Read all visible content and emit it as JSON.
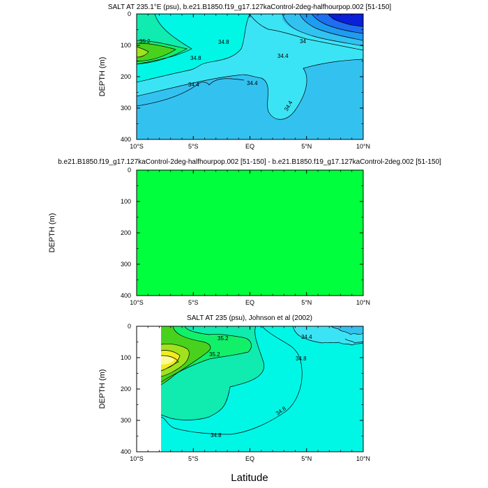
{
  "figure": {
    "xlabel": "Latitude",
    "colors": {
      "c33_0": "#0a1fd8",
      "c33_4": "#1e6ef0",
      "c33_8": "#1e9cf0",
      "c34_0": "#33c2f0",
      "c34_4": "#3be4f5",
      "c34_8": "#00f7e6",
      "c35_0": "#10ebb0",
      "c35_2": "#12f06a",
      "c35_4": "#48d21e",
      "c35_6": "#a0e21e",
      "c35_8": "#f0ec1e",
      "c36_0": "#fbfb96",
      "diff_fill": "#00ff3c"
    }
  },
  "chart_data": [
    {
      "id": "panel1",
      "type": "contour",
      "title": "SALT AT 235.1°E (psu), b.e21.B1850.f19_g17.127kaControl-2deg-halfhourpop.002 [51-150]",
      "ylabel": "DEPTH (m)",
      "xlim": [
        -10,
        10
      ],
      "ylim": [
        400,
        0
      ],
      "xticks": [
        "10°S",
        "5°S",
        "EQ",
        "5°N",
        "10°N"
      ],
      "xtick_values": [
        -10,
        -5,
        0,
        5,
        10
      ],
      "yticks": [
        "0",
        "100",
        "200",
        "300",
        "400"
      ],
      "ytick_values": [
        0,
        100,
        200,
        300,
        400
      ],
      "contour_labels": [
        "35.2",
        "34.8",
        "34.8",
        "34.4",
        "34",
        "34.4",
        "34.4",
        "34.4"
      ]
    },
    {
      "id": "panel2",
      "type": "contour",
      "title": "b.e21.B1850.f19_g17.127kaControl-2deg-halfhourpop.002 [51-150] - b.e21.B1850.f19_g17.127kaControl-2deg.002 [51-150]",
      "ylabel": "DEPTH (m)",
      "xlim": [
        -10,
        10
      ],
      "ylim": [
        400,
        0
      ],
      "xticks": [
        "10°S",
        "5°S",
        "EQ",
        "5°N",
        "10°N"
      ],
      "xtick_values": [
        -10,
        -5,
        0,
        5,
        10
      ],
      "yticks": [
        "0",
        "100",
        "200",
        "300",
        "400"
      ],
      "ytick_values": [
        0,
        100,
        200,
        300,
        400
      ],
      "difference_value": 0
    },
    {
      "id": "panel3",
      "type": "contour",
      "title": "SALT AT 235 (psu), Johnson et al (2002)",
      "ylabel": "DEPTH (m)",
      "xlim": [
        -10,
        10
      ],
      "ylim": [
        400,
        0
      ],
      "data_xmin": -8,
      "xticks": [
        "10°S",
        "5°S",
        "EQ",
        "5°N",
        "10°N"
      ],
      "xtick_values": [
        -10,
        -5,
        0,
        5,
        10
      ],
      "yticks": [
        "0",
        "100",
        "200",
        "300",
        "400"
      ],
      "ytick_values": [
        0,
        100,
        200,
        300,
        400
      ],
      "contour_labels": [
        "35.2",
        "35.2",
        "34.4",
        "34.8",
        "34.8",
        "34.8"
      ]
    }
  ]
}
